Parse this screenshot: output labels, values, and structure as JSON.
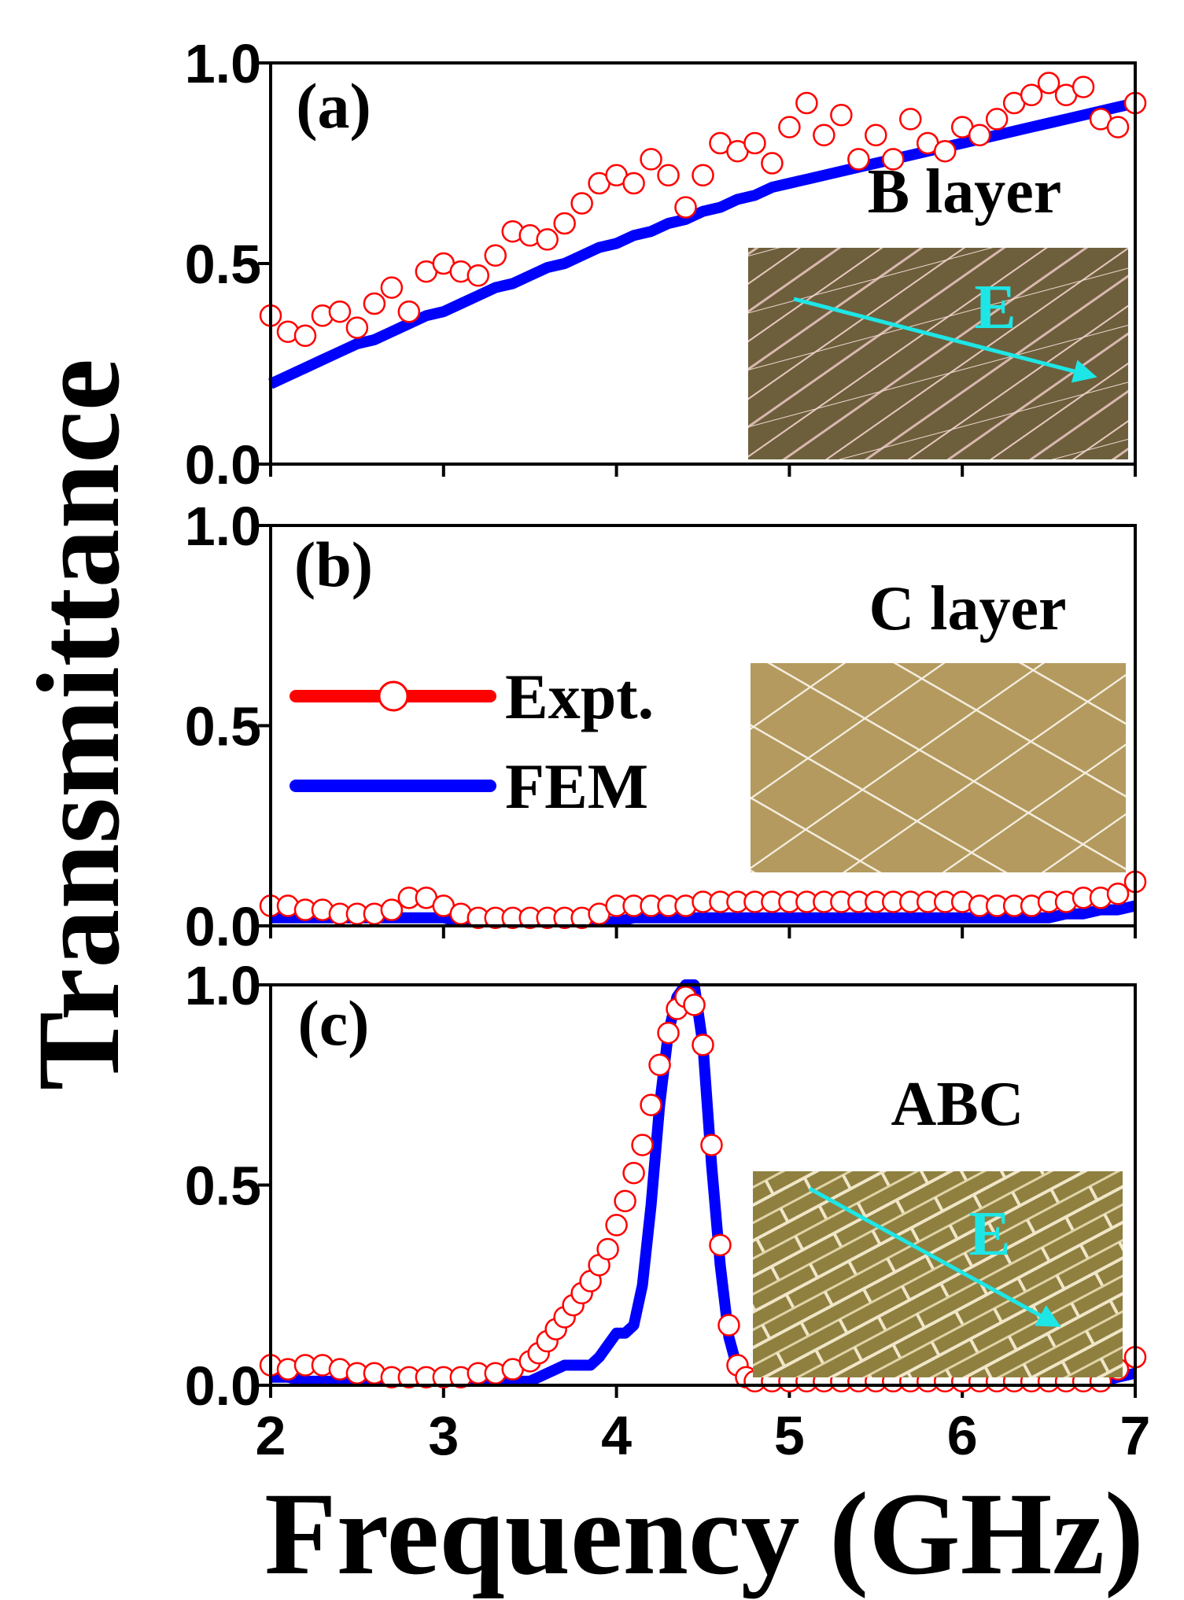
{
  "chart_data": [
    {
      "type": "line",
      "panel_label": "(a)",
      "inset_label": "B layer",
      "field_label": "E",
      "xlim": [
        2,
        7
      ],
      "xticks": [
        2,
        3,
        4,
        5,
        6,
        7
      ],
      "ylim": [
        0,
        1
      ],
      "yticks": [
        {
          "value": 0,
          "label": "0.0"
        },
        {
          "value": 0.5,
          "label": "0.5"
        },
        {
          "value": 1,
          "label": "1.0"
        }
      ],
      "x": [
        2.0,
        2.1,
        2.2,
        2.3,
        2.4,
        2.5,
        2.6,
        2.7,
        2.8,
        2.9,
        3.0,
        3.1,
        3.2,
        3.3,
        3.4,
        3.5,
        3.6,
        3.7,
        3.8,
        3.9,
        4.0,
        4.1,
        4.2,
        4.3,
        4.4,
        4.5,
        4.6,
        4.7,
        4.8,
        4.9,
        5.0,
        5.1,
        5.2,
        5.3,
        5.4,
        5.5,
        5.6,
        5.7,
        5.8,
        5.9,
        6.0,
        6.1,
        6.2,
        6.3,
        6.4,
        6.5,
        6.6,
        6.7,
        6.8,
        6.9,
        7.0
      ],
      "series": [
        {
          "color": "#ff0000",
          "marker": "circle",
          "values": [
            0.37,
            0.33,
            0.32,
            0.37,
            0.38,
            0.34,
            0.4,
            0.44,
            0.38,
            0.48,
            0.5,
            0.48,
            0.47,
            0.52,
            0.58,
            0.57,
            0.56,
            0.6,
            0.65,
            0.7,
            0.72,
            0.7,
            0.76,
            0.72,
            0.64,
            0.72,
            0.8,
            0.78,
            0.8,
            0.75,
            0.84,
            0.9,
            0.82,
            0.87,
            0.76,
            0.82,
            0.76,
            0.86,
            0.8,
            0.78,
            0.84,
            0.82,
            0.86,
            0.9,
            0.92,
            0.95,
            0.92,
            0.94,
            0.86,
            0.84,
            0.9
          ]
        },
        {
          "color": "#0000ff",
          "values": [
            0.2,
            0.22,
            0.24,
            0.26,
            0.28,
            0.3,
            0.31,
            0.33,
            0.35,
            0.37,
            0.38,
            0.4,
            0.42,
            0.44,
            0.45,
            0.47,
            0.49,
            0.5,
            0.52,
            0.54,
            0.55,
            0.57,
            0.58,
            0.6,
            0.61,
            0.63,
            0.64,
            0.66,
            0.67,
            0.69,
            0.7,
            0.71,
            0.72,
            0.73,
            0.74,
            0.75,
            0.76,
            0.77,
            0.78,
            0.79,
            0.8,
            0.81,
            0.82,
            0.83,
            0.84,
            0.85,
            0.86,
            0.87,
            0.88,
            0.89,
            0.9
          ]
        }
      ]
    },
    {
      "type": "line",
      "panel_label": "(b)",
      "inset_label": "C layer",
      "ylabel": "Transmittance",
      "legend": true,
      "xlim": [
        2,
        7
      ],
      "xticks": [
        2,
        3,
        4,
        5,
        6,
        7
      ],
      "ylim": [
        0,
        1
      ],
      "yticks": [
        {
          "value": 0,
          "label": "0.0"
        },
        {
          "value": 0.5,
          "label": "0.5"
        },
        {
          "value": 1,
          "label": "1.0"
        }
      ],
      "x": [
        2.0,
        2.1,
        2.2,
        2.3,
        2.4,
        2.5,
        2.6,
        2.7,
        2.8,
        2.9,
        3.0,
        3.1,
        3.2,
        3.3,
        3.4,
        3.5,
        3.6,
        3.7,
        3.8,
        3.9,
        4.0,
        4.1,
        4.2,
        4.3,
        4.4,
        4.5,
        4.6,
        4.7,
        4.8,
        4.9,
        5.0,
        5.1,
        5.2,
        5.3,
        5.4,
        5.5,
        5.6,
        5.7,
        5.8,
        5.9,
        6.0,
        6.1,
        6.2,
        6.3,
        6.4,
        6.5,
        6.6,
        6.7,
        6.8,
        6.9,
        7.0
      ],
      "series": [
        {
          "name": "Expt.",
          "color": "#ff0000",
          "marker": "circle",
          "values": [
            0.05,
            0.05,
            0.04,
            0.04,
            0.03,
            0.03,
            0.03,
            0.04,
            0.07,
            0.07,
            0.05,
            0.03,
            0.02,
            0.02,
            0.02,
            0.02,
            0.02,
            0.02,
            0.02,
            0.03,
            0.05,
            0.05,
            0.05,
            0.05,
            0.05,
            0.06,
            0.06,
            0.06,
            0.06,
            0.06,
            0.06,
            0.06,
            0.06,
            0.06,
            0.06,
            0.06,
            0.06,
            0.06,
            0.06,
            0.06,
            0.06,
            0.05,
            0.05,
            0.05,
            0.05,
            0.06,
            0.06,
            0.07,
            0.07,
            0.08,
            0.11
          ]
        },
        {
          "name": "FEM",
          "color": "#0000ff",
          "values": [
            0.02,
            0.02,
            0.02,
            0.02,
            0.02,
            0.02,
            0.02,
            0.02,
            0.02,
            0.02,
            0.02,
            0.01,
            0.01,
            0.01,
            0.01,
            0.01,
            0.01,
            0.01,
            0.01,
            0.01,
            0.01,
            0.02,
            0.02,
            0.02,
            0.02,
            0.02,
            0.02,
            0.02,
            0.02,
            0.02,
            0.02,
            0.02,
            0.02,
            0.02,
            0.02,
            0.02,
            0.02,
            0.02,
            0.02,
            0.02,
            0.02,
            0.02,
            0.02,
            0.02,
            0.02,
            0.02,
            0.03,
            0.03,
            0.04,
            0.04,
            0.05
          ]
        }
      ]
    },
    {
      "type": "line",
      "panel_label": "(c)",
      "inset_label": "ABC",
      "field_label": "E",
      "xlabel": "Frequency (GHz)",
      "xtick_labels": true,
      "xlim": [
        2,
        7
      ],
      "xticks": [
        2,
        3,
        4,
        5,
        6,
        7
      ],
      "ylim": [
        0,
        1
      ],
      "yticks": [
        {
          "value": 0,
          "label": "0.0"
        },
        {
          "value": 0.5,
          "label": "0.5"
        },
        {
          "value": 1,
          "label": "1.0"
        }
      ],
      "x": [
        2.0,
        2.1,
        2.2,
        2.3,
        2.4,
        2.5,
        2.6,
        2.7,
        2.8,
        2.9,
        3.0,
        3.1,
        3.2,
        3.3,
        3.4,
        3.5,
        3.55,
        3.6,
        3.65,
        3.7,
        3.75,
        3.8,
        3.85,
        3.9,
        3.95,
        4.0,
        4.05,
        4.1,
        4.15,
        4.2,
        4.25,
        4.3,
        4.35,
        4.4,
        4.45,
        4.5,
        4.55,
        4.6,
        4.65,
        4.7,
        4.75,
        4.8,
        4.9,
        5.0,
        5.1,
        5.2,
        5.3,
        5.4,
        5.5,
        5.6,
        5.7,
        5.8,
        5.9,
        6.0,
        6.1,
        6.2,
        6.3,
        6.4,
        6.5,
        6.6,
        6.7,
        6.8,
        6.9,
        7.0
      ],
      "series": [
        {
          "color": "#ff0000",
          "marker": "circle",
          "values": [
            0.05,
            0.04,
            0.05,
            0.05,
            0.04,
            0.03,
            0.03,
            0.02,
            0.02,
            0.02,
            0.02,
            0.02,
            0.03,
            0.03,
            0.04,
            0.06,
            0.08,
            0.11,
            0.14,
            0.17,
            0.2,
            0.23,
            0.26,
            0.3,
            0.34,
            0.4,
            0.46,
            0.53,
            0.6,
            0.7,
            0.8,
            0.88,
            0.94,
            0.97,
            0.95,
            0.85,
            0.6,
            0.35,
            0.15,
            0.05,
            0.02,
            0.01,
            0.01,
            0.01,
            0.01,
            0.01,
            0.01,
            0.01,
            0.01,
            0.01,
            0.01,
            0.01,
            0.01,
            0.01,
            0.01,
            0.01,
            0.01,
            0.01,
            0.01,
            0.01,
            0.01,
            0.01,
            0.04,
            0.07
          ]
        },
        {
          "color": "#0000ff",
          "values": [
            0.02,
            0.02,
            0.01,
            0.01,
            0.01,
            0.01,
            0.01,
            0.01,
            0.01,
            0.01,
            0.01,
            0.01,
            0.01,
            0.01,
            0.01,
            0.01,
            0.02,
            0.03,
            0.04,
            0.05,
            0.05,
            0.05,
            0.05,
            0.07,
            0.1,
            0.13,
            0.13,
            0.15,
            0.25,
            0.45,
            0.7,
            0.88,
            0.97,
            1.0,
            1.0,
            0.85,
            0.55,
            0.3,
            0.12,
            0.04,
            0.02,
            0.01,
            0.01,
            0.01,
            0.01,
            0.01,
            0.01,
            0.01,
            0.01,
            0.01,
            0.01,
            0.01,
            0.01,
            0.01,
            0.01,
            0.01,
            0.01,
            0.01,
            0.01,
            0.01,
            0.01,
            0.01,
            0.02,
            0.03
          ]
        }
      ]
    }
  ]
}
